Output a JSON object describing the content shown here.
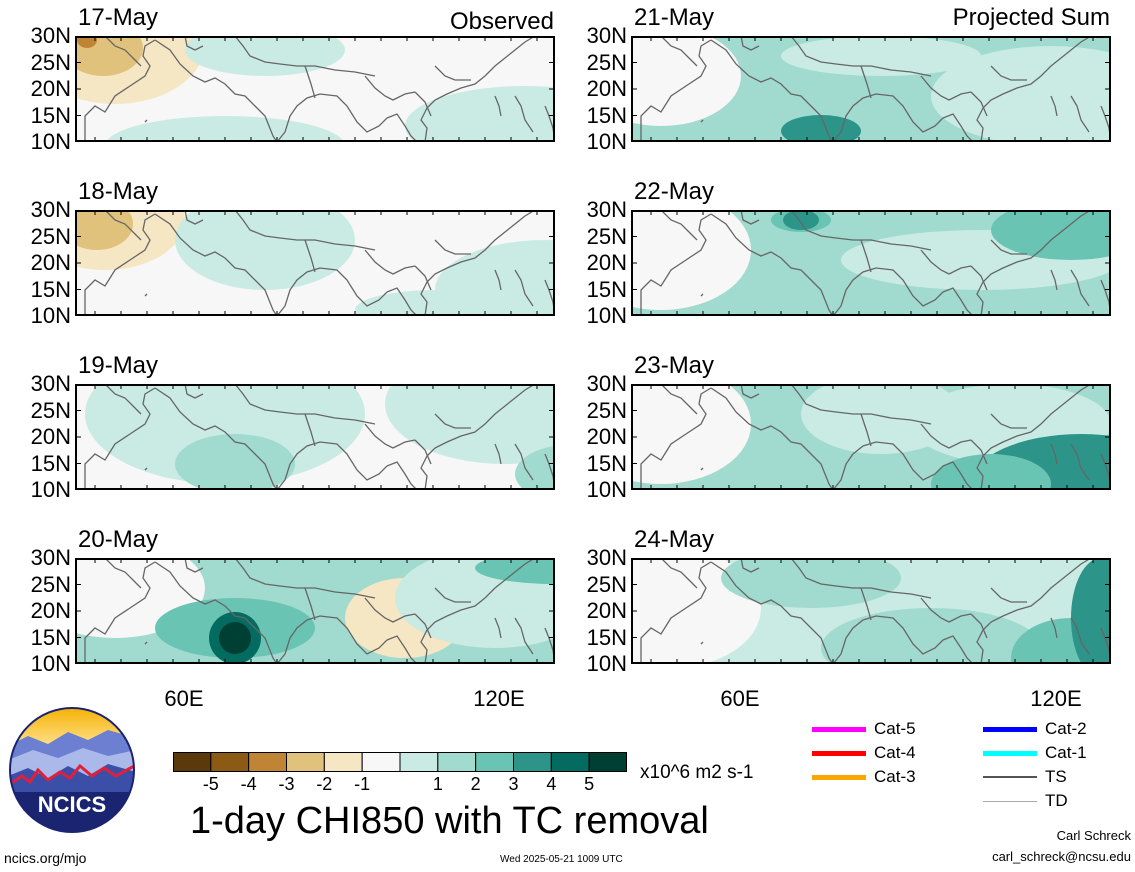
{
  "headers": {
    "left": "Observed",
    "right": "Projected Sum"
  },
  "panels_left": [
    {
      "date": "17-May"
    },
    {
      "date": "18-May"
    },
    {
      "date": "19-May"
    },
    {
      "date": "20-May"
    }
  ],
  "panels_right": [
    {
      "date": "21-May"
    },
    {
      "date": "22-May"
    },
    {
      "date": "23-May"
    },
    {
      "date": "24-May"
    }
  ],
  "lat_labels": [
    "30N",
    "25N",
    "20N",
    "15N",
    "10N"
  ],
  "lon_labels": [
    "60E",
    "120E"
  ],
  "colorbar": {
    "colors": [
      "#5a3a0a",
      "#8b5a14",
      "#c08436",
      "#e0c27c",
      "#f5e6c4",
      "#f7f7f7",
      "#c9ebe4",
      "#a1dace",
      "#6ac4b4",
      "#2c9488",
      "#046b60",
      "#003f34"
    ],
    "labels": [
      "-5",
      "-4",
      "-3",
      "-2",
      "-1",
      "1",
      "2",
      "3",
      "4",
      "5"
    ],
    "units": "x10^6 m2 s-1"
  },
  "legend": [
    {
      "label": "Cat-5",
      "color": "#ff00ff",
      "weight": "thick"
    },
    {
      "label": "Cat-4",
      "color": "#ff0000",
      "weight": "thick"
    },
    {
      "label": "Cat-3",
      "color": "#ffa500",
      "weight": "thick"
    },
    {
      "label": "Cat-2",
      "color": "#0000ff",
      "weight": "thick"
    },
    {
      "label": "Cat-1",
      "color": "#00ffff",
      "weight": "thick"
    },
    {
      "label": "TS",
      "color": "#555555",
      "weight": "medium"
    },
    {
      "label": "TD",
      "color": "#aaaaaa",
      "weight": "thin"
    }
  ],
  "title": "1-day CHI850 with TC removal",
  "footer": {
    "left": "ncics.org/mjo",
    "center": "Wed 2025-05-21 1009 UTC",
    "author": "Carl Schreck",
    "email": "carl_schreck@ncsu.edu"
  },
  "logo": {
    "text": "NCICS"
  },
  "map_fields": [
    {
      "base": "#f7f7f7",
      "blobs": [
        [
          "#f5e6c4",
          40,
          8,
          90,
          60
        ],
        [
          "#e0c27c",
          28,
          12,
          40,
          28
        ],
        [
          "#c08436",
          12,
          4,
          10,
          8
        ],
        [
          "#c9ebe4",
          190,
          14,
          80,
          26
        ],
        [
          "#c9ebe4",
          450,
          90,
          120,
          40
        ],
        [
          "#c9ebe4",
          150,
          110,
          120,
          30
        ]
      ]
    },
    {
      "base": "#f7f7f7",
      "blobs": [
        [
          "#f5e6c4",
          30,
          10,
          80,
          50
        ],
        [
          "#e0c27c",
          22,
          14,
          36,
          26
        ],
        [
          "#c9ebe4",
          190,
          30,
          90,
          50
        ],
        [
          "#c9ebe4",
          360,
          100,
          80,
          20
        ],
        [
          "#c9ebe4",
          470,
          80,
          110,
          50
        ]
      ]
    },
    {
      "base": "#f7f7f7",
      "blobs": [
        [
          "#c9ebe4",
          150,
          30,
          140,
          70
        ],
        [
          "#a1dace",
          160,
          80,
          60,
          30
        ],
        [
          "#c9ebe4",
          430,
          20,
          120,
          60
        ],
        [
          "#a1dace",
          500,
          90,
          60,
          30
        ]
      ]
    },
    {
      "base": "#a1dace",
      "blobs": [
        [
          "#f7f7f7",
          40,
          30,
          90,
          50
        ],
        [
          "#f5e6c4",
          330,
          60,
          60,
          40
        ],
        [
          "#c9ebe4",
          420,
          40,
          100,
          50
        ],
        [
          "#6ac4b4",
          160,
          70,
          80,
          30
        ],
        [
          "#046b60",
          160,
          80,
          26,
          26
        ],
        [
          "#003f34",
          160,
          80,
          16,
          16
        ],
        [
          "#6ac4b4",
          480,
          10,
          80,
          16
        ]
      ]
    },
    {
      "base": "#a1dace",
      "blobs": [
        [
          "#f7f7f7",
          30,
          40,
          80,
          50
        ],
        [
          "#c9ebe4",
          420,
          60,
          120,
          50
        ],
        [
          "#c9ebe4",
          250,
          20,
          100,
          20
        ],
        [
          "#2c9488",
          190,
          95,
          40,
          16
        ]
      ]
    },
    {
      "base": "#a1dace",
      "blobs": [
        [
          "#f7f7f7",
          30,
          40,
          90,
          60
        ],
        [
          "#c9ebe4",
          350,
          50,
          140,
          30
        ],
        [
          "#6ac4b4",
          170,
          10,
          30,
          12
        ],
        [
          "#2c9488",
          170,
          10,
          18,
          10
        ],
        [
          "#6ac4b4",
          440,
          20,
          80,
          30
        ]
      ]
    },
    {
      "base": "#a1dace",
      "blobs": [
        [
          "#f7f7f7",
          30,
          40,
          90,
          60
        ],
        [
          "#c9ebe4",
          250,
          30,
          80,
          40
        ],
        [
          "#c9ebe4",
          380,
          40,
          100,
          40
        ],
        [
          "#2c9488",
          450,
          100,
          110,
          50
        ],
        [
          "#6ac4b4",
          360,
          100,
          60,
          30
        ]
      ]
    },
    {
      "base": "#c9ebe4",
      "blobs": [
        [
          "#f7f7f7",
          40,
          50,
          90,
          60
        ],
        [
          "#a1dace",
          180,
          20,
          90,
          30
        ],
        [
          "#a1dace",
          300,
          90,
          110,
          40
        ],
        [
          "#6ac4b4",
          440,
          100,
          60,
          40
        ],
        [
          "#2c9488",
          470,
          60,
          30,
          60
        ]
      ]
    }
  ]
}
